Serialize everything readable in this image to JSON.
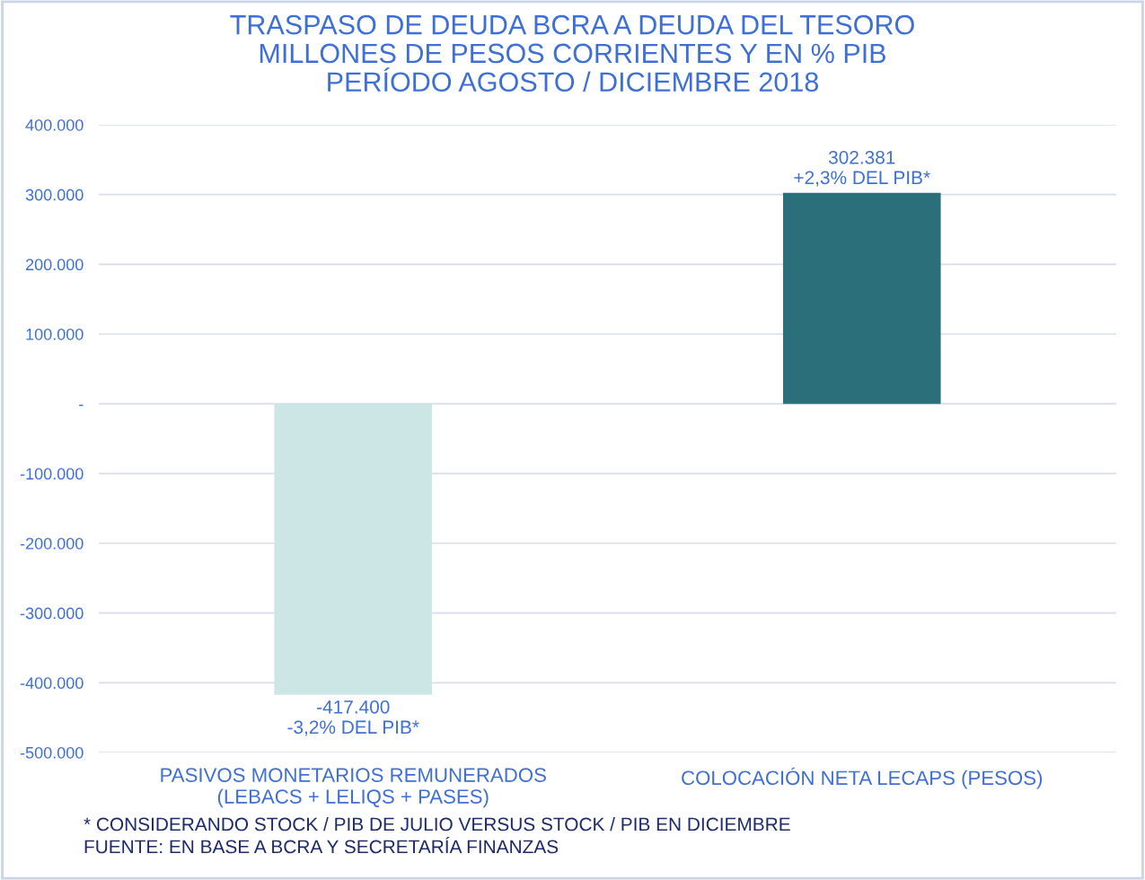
{
  "chart_data": {
    "type": "bar",
    "title": "TRASPASO DE DEUDA BCRA A DEUDA DEL TESORO\nMILLONES DE PESOS CORRIENTES Y EN % PIB\nPERÍODO AGOSTO / DICIEMBRE 2018",
    "categories": [
      "PASIVOS MONETARIOS REMUNERADOS\n(LEBACS + LELIQS + PASES)",
      "COLOCACIÓN NETA LECAPS (PESOS)"
    ],
    "values": [
      -417400,
      302381
    ],
    "colors": [
      "#cce6e6",
      "#2b6f7b"
    ],
    "value_labels": [
      "-417.400\n-3,2% DEL PIB*",
      "302.381\n+2,3% DEL PIB*"
    ],
    "ylim": [
      -500000,
      400000
    ],
    "yticks": [
      {
        "value": -500000,
        "label": "-500.000"
      },
      {
        "value": -400000,
        "label": "-400.000"
      },
      {
        "value": -300000,
        "label": "-300.000"
      },
      {
        "value": -200000,
        "label": "-200.000"
      },
      {
        "value": -100000,
        "label": "-100.000"
      },
      {
        "value": 0,
        "label": "-"
      },
      {
        "value": 100000,
        "label": "100.000"
      },
      {
        "value": 200000,
        "label": "200.000"
      },
      {
        "value": 300000,
        "label": "300.000"
      },
      {
        "value": 400000,
        "label": "400.000"
      }
    ],
    "grid": "y",
    "legend": false,
    "annotations": [
      "* CONSIDERANDO STOCK / PIB DE JULIO VERSUS STOCK / PIB EN DICIEMBRE",
      "FUENTE: EN BASE A BCRA Y SECRETARÍA FINANZAS"
    ]
  }
}
